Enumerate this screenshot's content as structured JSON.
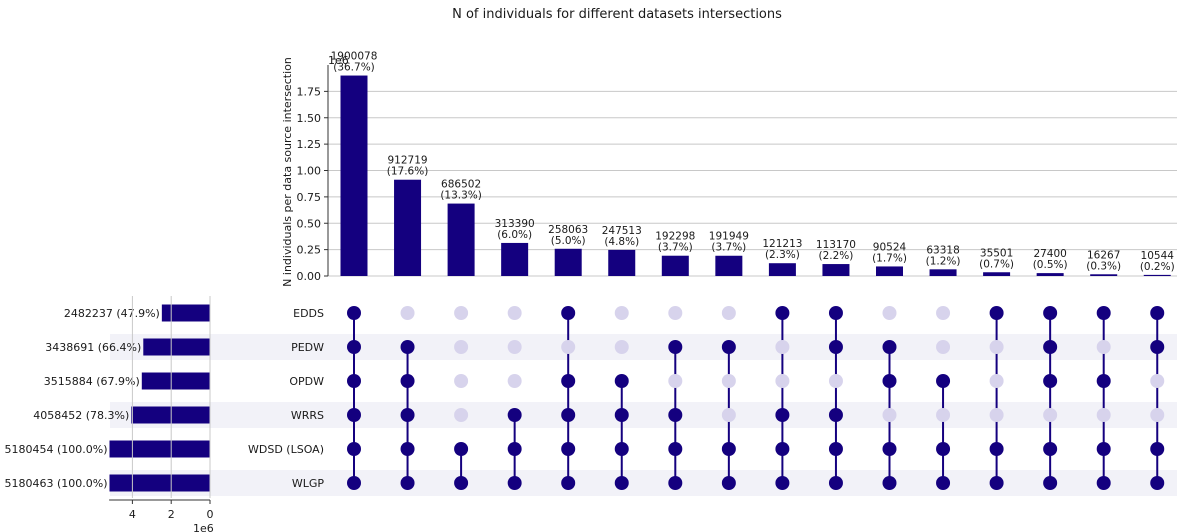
{
  "chart_data": {
    "type": "upset",
    "title": "N of individuals for different datasets intersections",
    "ylabel": "N individuals per data source intersection",
    "y_scale_label": "1e6",
    "x_scale_label": "1e6",
    "ylim": [
      0,
      2.0
    ],
    "y_ticks": [
      "0.00",
      "0.25",
      "0.50",
      "0.75",
      "1.00",
      "1.25",
      "1.50",
      "1.75"
    ],
    "set_size_ticks": [
      "4",
      "2",
      "0"
    ],
    "accent_color": "#14007f",
    "inactive_dot_color": "#d7d3ec",
    "stripe_color": "#f2f2f8",
    "sets": [
      {
        "name": "EDDS",
        "size": 2482237,
        "label": "2482237 (47.9%)"
      },
      {
        "name": "PEDW",
        "size": 3438691,
        "label": "3438691 (66.4%)"
      },
      {
        "name": "OPDW",
        "size": 3515884,
        "label": "3515884 (67.9%)"
      },
      {
        "name": "WRRS",
        "size": 4058452,
        "label": "4058452 (78.3%)"
      },
      {
        "name": "WDSD (LSOA)",
        "size": 5180454,
        "label": "5180454 (100.0%)"
      },
      {
        "name": "WLGP",
        "size": 5180463,
        "label": "5180463 (100.0%)"
      }
    ],
    "intersections": [
      {
        "value": 1900078,
        "count": "1900078",
        "pct": "(36.7%)",
        "members": [
          1,
          1,
          1,
          1,
          1,
          1
        ]
      },
      {
        "value": 912719,
        "count": "912719",
        "pct": "(17.6%)",
        "members": [
          0,
          1,
          1,
          1,
          1,
          1
        ]
      },
      {
        "value": 686502,
        "count": "686502",
        "pct": "(13.3%)",
        "members": [
          0,
          0,
          0,
          0,
          1,
          1
        ]
      },
      {
        "value": 313390,
        "count": "313390",
        "pct": "(6.0%)",
        "members": [
          0,
          0,
          0,
          1,
          1,
          1
        ]
      },
      {
        "value": 258063,
        "count": "258063",
        "pct": "(5.0%)",
        "members": [
          1,
          0,
          1,
          1,
          1,
          1
        ]
      },
      {
        "value": 247513,
        "count": "247513",
        "pct": "(4.8%)",
        "members": [
          0,
          0,
          1,
          1,
          1,
          1
        ]
      },
      {
        "value": 192298,
        "count": "192298",
        "pct": "(3.7%)",
        "members": [
          0,
          1,
          0,
          1,
          1,
          1
        ]
      },
      {
        "value": 191949,
        "count": "191949",
        "pct": "(3.7%)",
        "members": [
          0,
          1,
          0,
          0,
          1,
          1
        ]
      },
      {
        "value": 121213,
        "count": "121213",
        "pct": "(2.3%)",
        "members": [
          1,
          0,
          0,
          1,
          1,
          1
        ]
      },
      {
        "value": 113170,
        "count": "113170",
        "pct": "(2.2%)",
        "members": [
          1,
          1,
          0,
          1,
          1,
          1
        ]
      },
      {
        "value": 90524,
        "count": "90524",
        "pct": "(1.7%)",
        "members": [
          0,
          1,
          1,
          0,
          1,
          1
        ]
      },
      {
        "value": 63318,
        "count": "63318",
        "pct": "(1.2%)",
        "members": [
          0,
          0,
          1,
          0,
          1,
          1
        ]
      },
      {
        "value": 35501,
        "count": "35501",
        "pct": "(0.7%)",
        "members": [
          1,
          0,
          0,
          0,
          1,
          1
        ]
      },
      {
        "value": 27400,
        "count": "27400",
        "pct": "(0.5%)",
        "members": [
          1,
          1,
          1,
          0,
          1,
          1
        ]
      },
      {
        "value": 16267,
        "count": "16267",
        "pct": "(0.3%)",
        "members": [
          1,
          0,
          1,
          0,
          1,
          1
        ]
      },
      {
        "value": 10544,
        "count": "10544",
        "pct": "(0.2%)",
        "members": [
          1,
          1,
          0,
          0,
          1,
          1
        ]
      }
    ]
  }
}
